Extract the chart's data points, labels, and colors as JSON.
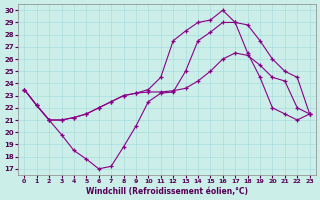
{
  "xlabel": "Windchill (Refroidissement éolien,°C)",
  "bg_color": "#cceee8",
  "line_color": "#880088",
  "grid_color": "#aadddd",
  "xlim": [
    -0.5,
    23.5
  ],
  "ylim": [
    16.5,
    30.5
  ],
  "yticks": [
    17,
    18,
    19,
    20,
    21,
    22,
    23,
    24,
    25,
    26,
    27,
    28,
    29,
    30
  ],
  "xticks": [
    0,
    1,
    2,
    3,
    4,
    5,
    6,
    7,
    8,
    9,
    10,
    11,
    12,
    13,
    14,
    15,
    16,
    17,
    18,
    19,
    20,
    21,
    22,
    23
  ],
  "line1_x": [
    0,
    1,
    2,
    3,
    4,
    5,
    6,
    7,
    8,
    9,
    10,
    11,
    12,
    13,
    14,
    15,
    16,
    17,
    18,
    19,
    20,
    21,
    22,
    23
  ],
  "line1_y": [
    23.5,
    22.2,
    21.0,
    19.8,
    18.5,
    17.8,
    17.0,
    17.2,
    18.8,
    20.5,
    22.5,
    23.2,
    23.3,
    25.0,
    27.5,
    28.2,
    29.0,
    29.0,
    26.5,
    24.5,
    22.0,
    21.5,
    21.0,
    21.5
  ],
  "line2_x": [
    0,
    1,
    2,
    3,
    4,
    5,
    6,
    7,
    8,
    9,
    10,
    11,
    12,
    13,
    14,
    15,
    16,
    17,
    18,
    19,
    20,
    21,
    22,
    23
  ],
  "line2_y": [
    23.5,
    22.2,
    21.0,
    21.0,
    21.2,
    21.5,
    22.0,
    22.5,
    23.0,
    23.2,
    23.3,
    23.3,
    23.4,
    23.6,
    24.2,
    25.0,
    26.0,
    26.5,
    26.3,
    25.5,
    24.5,
    24.2,
    22.0,
    21.5
  ],
  "line3_x": [
    0,
    1,
    2,
    3,
    4,
    5,
    6,
    7,
    8,
    9,
    10,
    11,
    12,
    13,
    14,
    15,
    16,
    17,
    18,
    19,
    20,
    21,
    22,
    23
  ],
  "line3_y": [
    23.5,
    22.2,
    21.0,
    21.0,
    21.2,
    21.5,
    22.0,
    22.5,
    23.0,
    23.2,
    23.5,
    24.5,
    27.5,
    28.3,
    29.0,
    29.2,
    30.0,
    29.0,
    28.8,
    27.5,
    26.0,
    25.0,
    24.5,
    21.5
  ]
}
